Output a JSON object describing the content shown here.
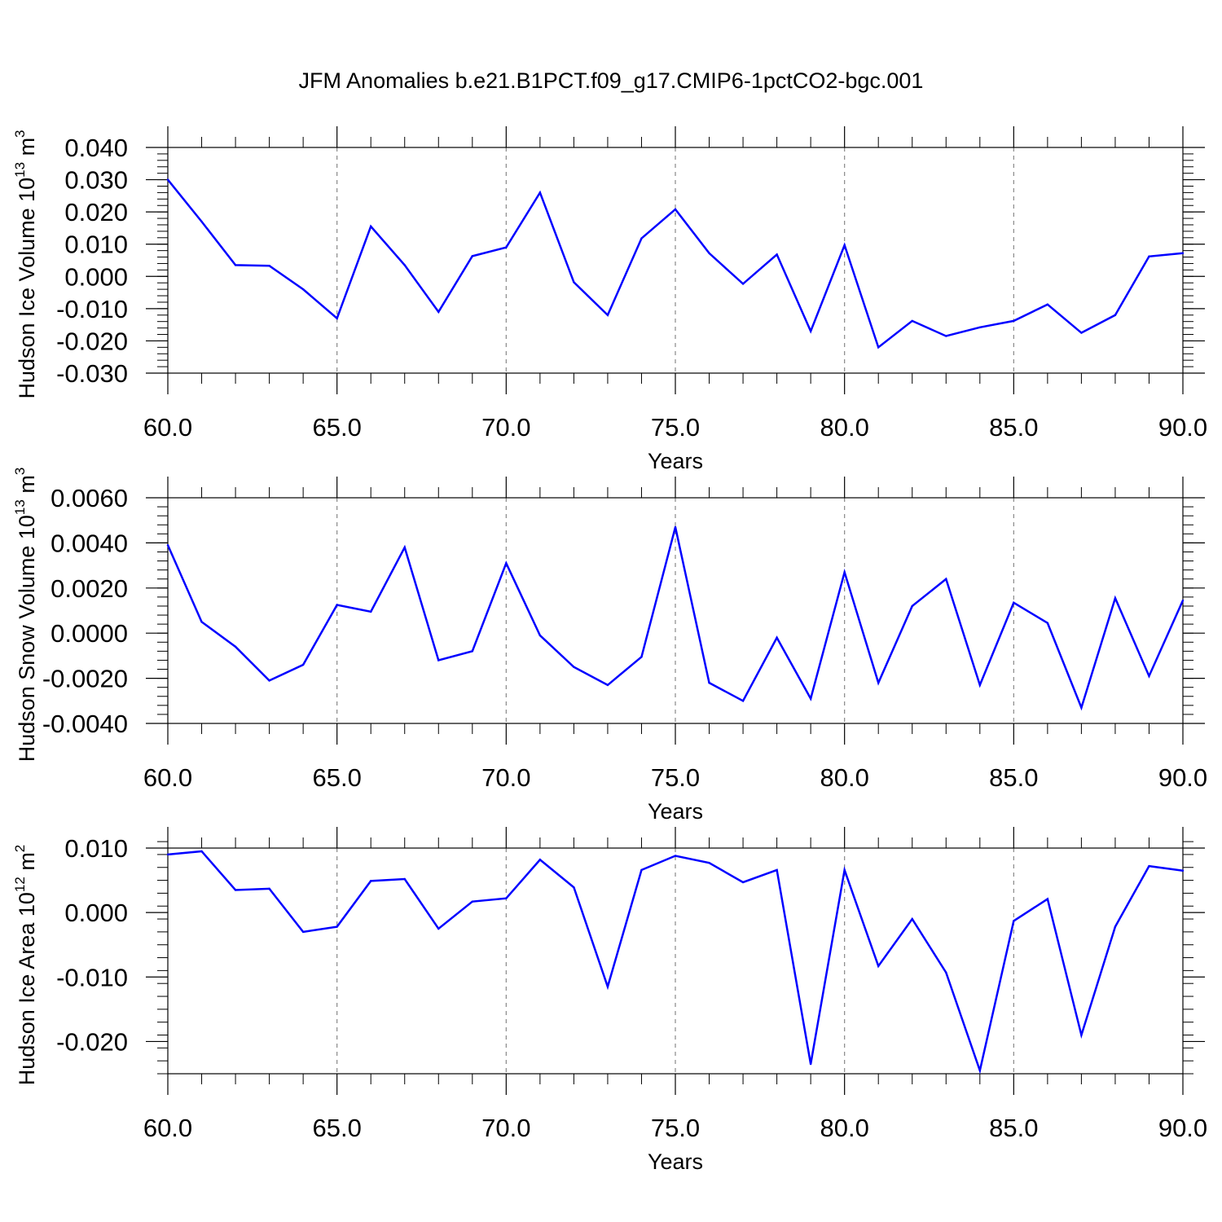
{
  "title": "JFM Anomalies b.e21.B1PCT.f09_g17.CMIP6-1pctCO2-bgc.001",
  "line_color": "#0000ff",
  "chart_data": [
    {
      "type": "line",
      "xlabel": "Years",
      "ylabel_main": "Hudson Ice Volume 10",
      "ylabel_sup1": "13",
      "ylabel_unit": " m",
      "ylabel_sup2": "3",
      "xlim": [
        60,
        90
      ],
      "ylim": [
        -0.03,
        0.04
      ],
      "xticks": [
        "60.0",
        "65.0",
        "70.0",
        "75.0",
        "80.0",
        "85.0",
        "90.0"
      ],
      "yticks": [
        "-0.030",
        "-0.020",
        "-0.010",
        "0.000",
        "0.010",
        "0.020",
        "0.030",
        "0.040"
      ],
      "grid": "vertical dashed at major x ticks",
      "x": [
        60,
        61,
        62,
        63,
        64,
        65,
        66,
        67,
        68,
        69,
        70,
        71,
        72,
        73,
        74,
        75,
        76,
        77,
        78,
        79,
        80,
        81,
        82,
        83,
        84,
        85,
        86,
        87,
        88,
        89,
        90
      ],
      "values": [
        0.03,
        0.017,
        0.0035,
        0.0033,
        -0.004,
        -0.013,
        0.0155,
        0.0035,
        -0.011,
        0.0063,
        0.009,
        0.026,
        -0.0018,
        -0.012,
        0.0118,
        0.0208,
        0.0072,
        -0.0023,
        0.0068,
        -0.017,
        0.0097,
        -0.022,
        -0.0138,
        -0.0185,
        -0.0158,
        -0.0138,
        -0.0087,
        -0.0175,
        -0.012,
        0.0062,
        0.0072
      ]
    },
    {
      "type": "line",
      "xlabel": "Years",
      "ylabel_main": "Hudson Snow Volume 10",
      "ylabel_sup1": "13",
      "ylabel_unit": " m",
      "ylabel_sup2": "3",
      "xlim": [
        60,
        90
      ],
      "ylim": [
        -0.004,
        0.006
      ],
      "xticks": [
        "60.0",
        "65.0",
        "70.0",
        "75.0",
        "80.0",
        "85.0",
        "90.0"
      ],
      "yticks": [
        "-0.0040",
        "-0.0020",
        "0.0000",
        "0.0020",
        "0.0040",
        "0.0060"
      ],
      "grid": "vertical dashed at major x ticks",
      "x": [
        60,
        61,
        62,
        63,
        64,
        65,
        66,
        67,
        68,
        69,
        70,
        71,
        72,
        73,
        74,
        75,
        76,
        77,
        78,
        79,
        80,
        81,
        82,
        83,
        84,
        85,
        86,
        87,
        88,
        89,
        90
      ],
      "values": [
        0.0039,
        0.0005,
        -0.0006,
        -0.0021,
        -0.0014,
        0.00125,
        0.00095,
        0.0038,
        -0.0012,
        -0.0008,
        0.0031,
        -0.0001,
        -0.0015,
        -0.0023,
        -0.00105,
        0.0047,
        -0.0022,
        -0.003,
        -0.0002,
        -0.0029,
        0.0027,
        -0.0022,
        0.0012,
        0.0024,
        -0.0023,
        0.00135,
        0.00045,
        -0.0033,
        0.00155,
        -0.0019,
        0.00145
      ]
    },
    {
      "type": "line",
      "xlabel": "Years",
      "ylabel_main": "Hudson Ice Area 10",
      "ylabel_sup1": "12",
      "ylabel_unit": " m",
      "ylabel_sup2": "2",
      "xlim": [
        60,
        90
      ],
      "ylim": [
        -0.025,
        0.01
      ],
      "xticks": [
        "60.0",
        "65.0",
        "70.0",
        "75.0",
        "80.0",
        "85.0",
        "90.0"
      ],
      "yticks": [
        "-0.020",
        "-0.010",
        "0.000",
        "0.010"
      ],
      "grid": "vertical dashed at major x ticks",
      "x": [
        60,
        61,
        62,
        63,
        64,
        65,
        66,
        67,
        68,
        69,
        70,
        71,
        72,
        73,
        74,
        75,
        76,
        77,
        78,
        79,
        80,
        81,
        82,
        83,
        84,
        85,
        86,
        87,
        88,
        89,
        90
      ],
      "values": [
        0.009,
        0.0095,
        0.0035,
        0.0037,
        -0.003,
        -0.0022,
        0.0049,
        0.0052,
        -0.0025,
        0.0017,
        0.0022,
        0.0082,
        0.0039,
        -0.0115,
        0.0066,
        0.0088,
        0.0077,
        0.0047,
        0.0066,
        -0.0235,
        0.0066,
        -0.0083,
        -0.001,
        -0.0093,
        -0.0245,
        -0.0013,
        0.0021,
        -0.019,
        -0.0022,
        0.0072,
        0.0065
      ]
    }
  ]
}
